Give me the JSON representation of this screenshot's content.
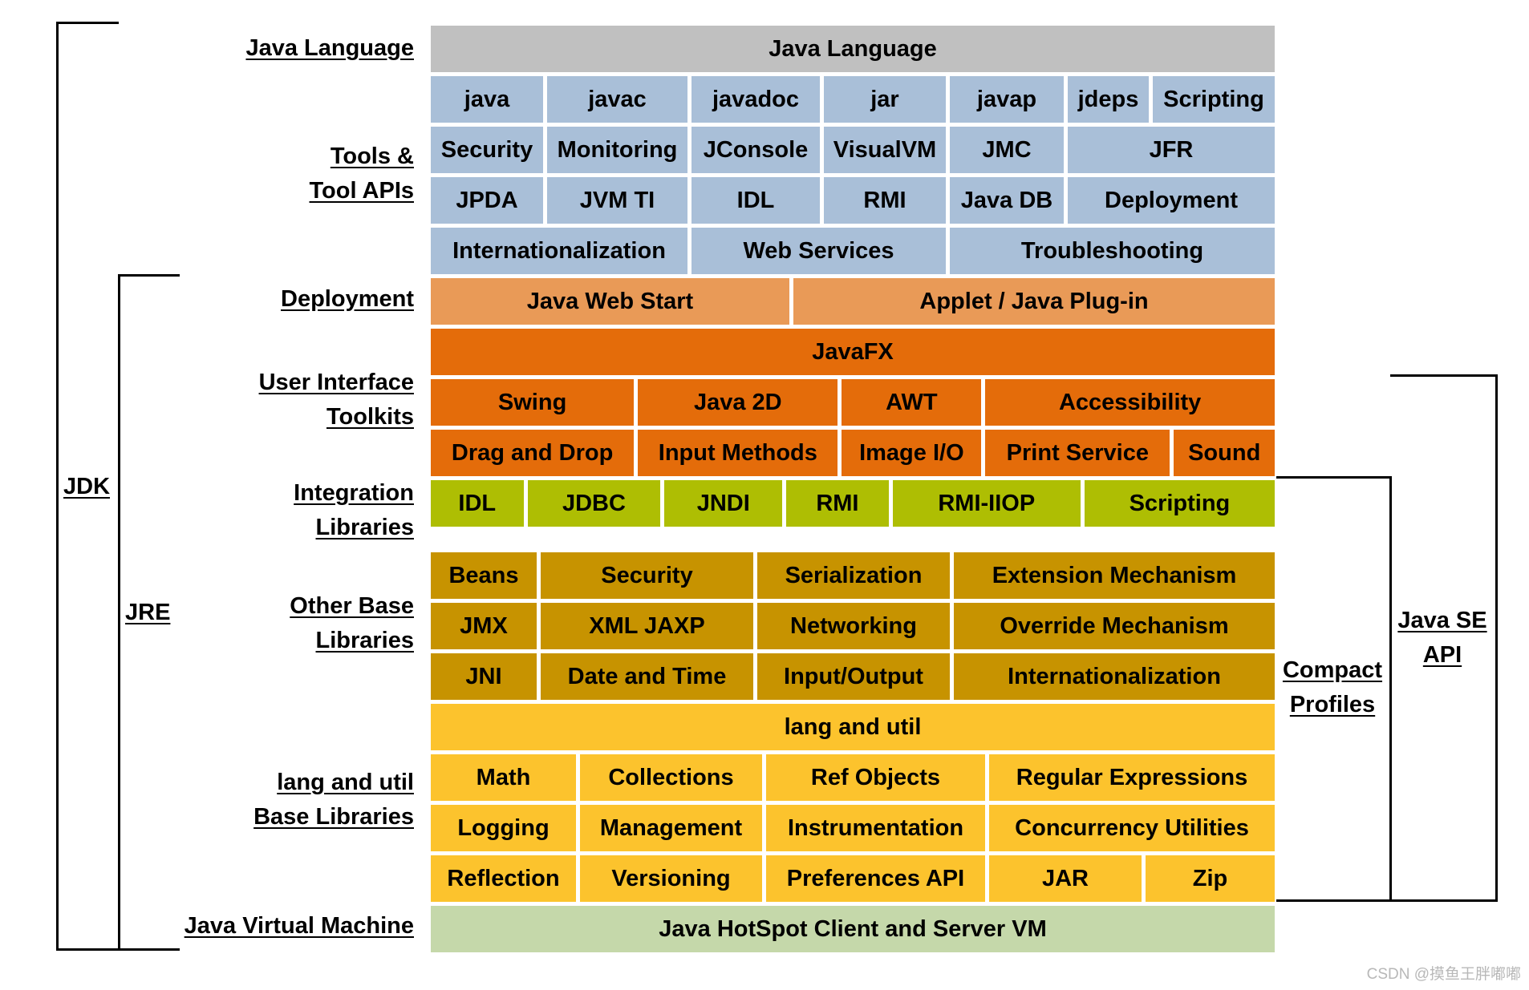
{
  "colors": {
    "java_language": "#c0c0c0",
    "tools": "#a9bfd8",
    "deployment": "#e99a57",
    "ui_toolkits": "#e46c0a",
    "integration": "#aebe03",
    "other_base": "#c79300",
    "lang_util": "#fcc32d",
    "jvm": "#c5d8aa",
    "bracket": "#000000",
    "watermark": "#b8b8b8"
  },
  "left_labels": {
    "java_language": "Java Language",
    "tools_1": "Tools &",
    "tools_2": "Tool APIs",
    "deployment": "Deployment",
    "ui_1": "User Interface",
    "ui_2": "Toolkits",
    "integration_1": "Integration",
    "integration_2": "Libraries",
    "other_base_1": "Other Base",
    "other_base_2": "Libraries",
    "lang_util_1": "lang and util",
    "lang_util_2": "Base Libraries",
    "jvm": "Java Virtual Machine"
  },
  "brackets": {
    "jdk": "JDK",
    "jre": "JRE",
    "compact_1": "Compact",
    "compact_2": "Profiles",
    "java_se_1": "Java SE",
    "java_se_2": "API"
  },
  "java_language": {
    "label": "Java Language"
  },
  "tools": {
    "row1": [
      "java",
      "javac",
      "javadoc",
      "jar",
      "javap",
      "jdeps",
      "Scripting"
    ],
    "row2": [
      "Security",
      "Monitoring",
      "JConsole",
      "VisualVM",
      "JMC",
      "JFR"
    ],
    "row3": [
      "JPDA",
      "JVM TI",
      "IDL",
      "RMI",
      "Java DB",
      "Deployment"
    ],
    "row4": [
      "Internationalization",
      "Web Services",
      "Troubleshooting"
    ]
  },
  "deployment": {
    "row": [
      "Java Web Start",
      "Applet / Java Plug-in"
    ]
  },
  "ui_toolkits": {
    "javafx": "JavaFX",
    "row1": [
      "Swing",
      "Java 2D",
      "AWT",
      "Accessibility"
    ],
    "row2": [
      "Drag and Drop",
      "Input Methods",
      "Image I/O",
      "Print Service",
      "Sound"
    ]
  },
  "integration": {
    "row": [
      "IDL",
      "JDBC",
      "JNDI",
      "RMI",
      "RMI-IIOP",
      "Scripting"
    ]
  },
  "other_base": {
    "row1": [
      "Beans",
      "Security",
      "Serialization",
      "Extension Mechanism"
    ],
    "row2": [
      "JMX",
      "XML JAXP",
      "Networking",
      "Override Mechanism"
    ],
    "row3": [
      "JNI",
      "Date and Time",
      "Input/Output",
      "Internationalization"
    ]
  },
  "lang_util": {
    "header": "lang and util",
    "row1": [
      "Math",
      "Collections",
      "Ref Objects",
      "Regular Expressions"
    ],
    "row2": [
      "Logging",
      "Management",
      "Instrumentation",
      "Concurrency Utilities"
    ],
    "row3": [
      "Reflection",
      "Versioning",
      "Preferences API",
      "JAR",
      "Zip"
    ]
  },
  "jvm": {
    "label": "Java HotSpot Client and Server VM"
  },
  "watermark": "CSDN @摸鱼王胖嘟嘟"
}
